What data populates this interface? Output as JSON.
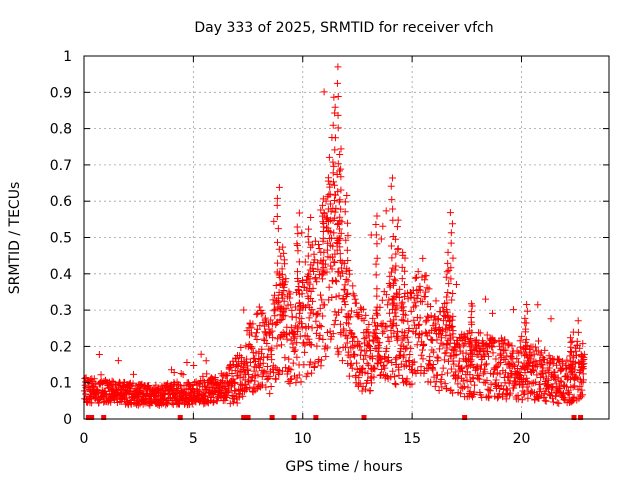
{
  "chart_data": {
    "type": "scatter",
    "title": "Day 333 of 2025, SRMTID for receiver vfch",
    "xlabel": "GPS time / hours",
    "ylabel": "SRMTID / TECUs",
    "xlim": [
      0,
      24
    ],
    "ylim": [
      0,
      1
    ],
    "x_ticks": [
      0,
      5,
      10,
      15,
      20
    ],
    "x_tick_labels": [
      "0",
      "5",
      "10",
      "15",
      "20"
    ],
    "y_ticks": [
      0,
      0.1,
      0.2,
      0.3,
      0.4,
      0.5,
      0.6,
      0.7,
      0.8,
      0.9,
      1
    ],
    "y_tick_labels": [
      "0",
      "0.1",
      "0.2",
      "0.3",
      "0.4",
      "0.5",
      "0.6",
      "0.7",
      "0.8",
      "0.9",
      "1"
    ],
    "grid": true,
    "marker": "+",
    "series_color": "#ff0000",
    "trend_points": [
      [
        0.0,
        0.08
      ],
      [
        1.0,
        0.075
      ],
      [
        2.0,
        0.07
      ],
      [
        3.0,
        0.065
      ],
      [
        4.0,
        0.07
      ],
      [
        5.0,
        0.07
      ],
      [
        6.0,
        0.08
      ],
      [
        7.0,
        0.11
      ],
      [
        7.4,
        0.15
      ],
      [
        8.0,
        0.2
      ],
      [
        8.5,
        0.17
      ],
      [
        9.0,
        0.3
      ],
      [
        9.5,
        0.22
      ],
      [
        10.0,
        0.25
      ],
      [
        10.5,
        0.3
      ],
      [
        11.0,
        0.4
      ],
      [
        11.5,
        0.45
      ],
      [
        12.0,
        0.28
      ],
      [
        12.5,
        0.2
      ],
      [
        13.0,
        0.18
      ],
      [
        13.5,
        0.2
      ],
      [
        14.0,
        0.27
      ],
      [
        14.5,
        0.2
      ],
      [
        15.0,
        0.23
      ],
      [
        15.5,
        0.28
      ],
      [
        16.0,
        0.18
      ],
      [
        16.5,
        0.2
      ],
      [
        17.0,
        0.15
      ],
      [
        18.0,
        0.15
      ],
      [
        19.0,
        0.14
      ],
      [
        20.0,
        0.13
      ],
      [
        21.0,
        0.12
      ],
      [
        22.0,
        0.1
      ],
      [
        22.8,
        0.14
      ]
    ],
    "peaks": [
      {
        "x": 8.9,
        "y": 0.64
      },
      {
        "x": 9.1,
        "y": 0.47
      },
      {
        "x": 9.8,
        "y": 0.56
      },
      {
        "x": 10.3,
        "y": 0.55
      },
      {
        "x": 10.9,
        "y": 0.6
      },
      {
        "x": 11.2,
        "y": 0.65
      },
      {
        "x": 11.4,
        "y": 0.88
      },
      {
        "x": 11.55,
        "y": 0.97
      },
      {
        "x": 11.7,
        "y": 0.75
      },
      {
        "x": 12.0,
        "y": 0.62
      },
      {
        "x": 13.4,
        "y": 0.56
      },
      {
        "x": 14.1,
        "y": 0.67
      },
      {
        "x": 14.3,
        "y": 0.55
      },
      {
        "x": 14.6,
        "y": 0.46
      },
      {
        "x": 16.6,
        "y": 0.43
      },
      {
        "x": 16.8,
        "y": 0.57
      },
      {
        "x": 17.7,
        "y": 0.32
      },
      {
        "x": 20.2,
        "y": 0.31
      },
      {
        "x": 22.3,
        "y": 0.24
      },
      {
        "x": 22.8,
        "y": 0.18
      }
    ],
    "baseline_marks_x": [
      0.2,
      0.35,
      0.9,
      4.4,
      7.3,
      7.5,
      8.6,
      9.6,
      10.6,
      12.8,
      17.4,
      22.4,
      22.7
    ]
  }
}
